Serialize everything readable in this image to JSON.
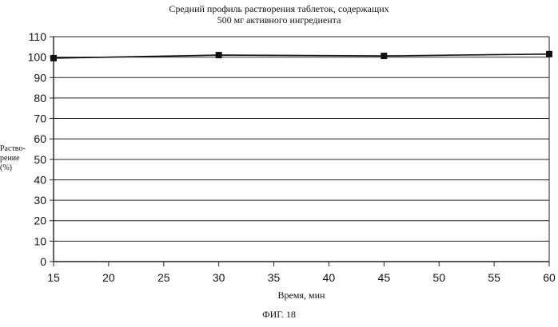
{
  "chart_data": {
    "type": "line",
    "title_lines": [
      "Средний профиль растворения таблеток, содержащих",
      "500 мг активного ингредиента"
    ],
    "xlabel": "Время, мин",
    "ylabel_lines": [
      "Раство-",
      "рение",
      "(%)"
    ],
    "x_ticks": [
      "15",
      "20",
      "25",
      "30",
      "35",
      "40",
      "45",
      "50",
      "55",
      "60"
    ],
    "y_ticks": [
      "0",
      "10",
      "20",
      "30",
      "40",
      "50",
      "60",
      "70",
      "80",
      "90",
      "100",
      "110"
    ],
    "xlim": [
      15,
      60
    ],
    "ylim": [
      0,
      110
    ],
    "grid": "horizontal",
    "series": [
      {
        "x": [
          15,
          30,
          45,
          60
        ],
        "y": [
          99.5,
          101,
          100.6,
          101.5
        ],
        "marker": "square",
        "color": "#111111"
      }
    ]
  },
  "caption": "ФИГ. 18"
}
